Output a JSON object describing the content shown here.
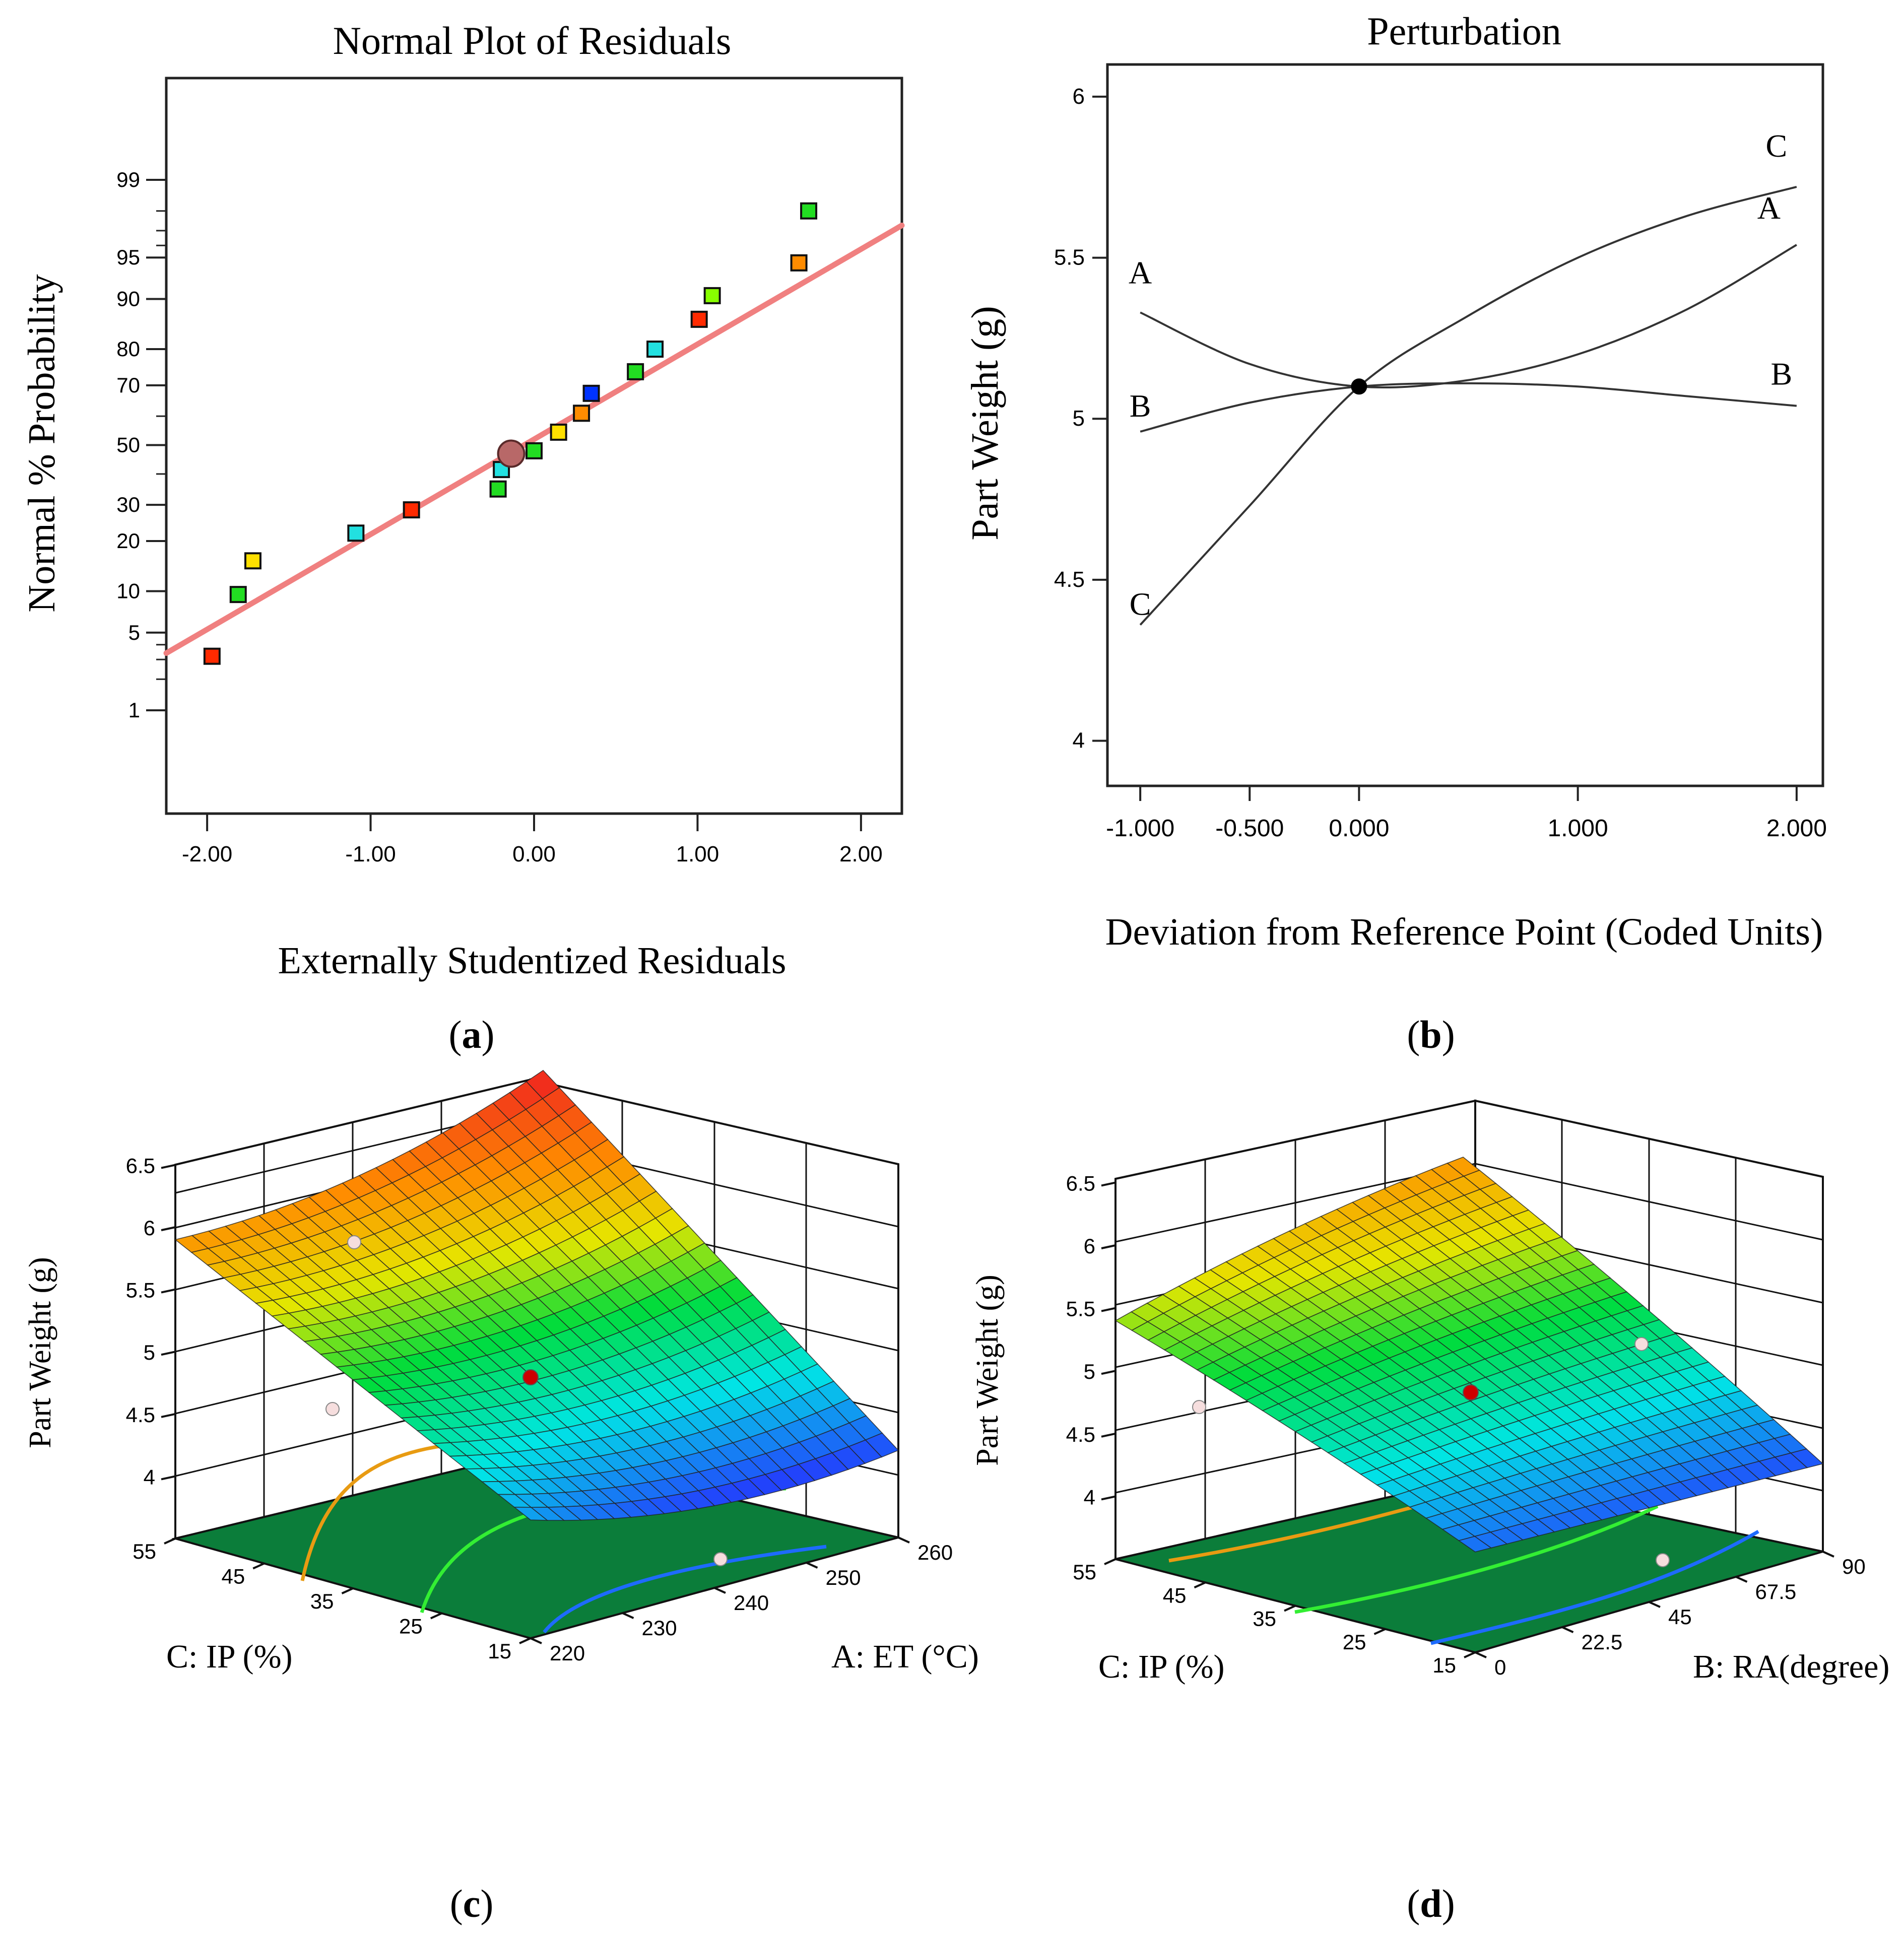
{
  "panel_labels": {
    "a": "a",
    "b": "b",
    "c": "c",
    "d": "d"
  },
  "colors": {
    "fit_line": "#f08080",
    "red": "#ff2a00",
    "orange": "#ff8c00",
    "yellow": "#ffe000",
    "lime": "#88ff00",
    "green": "#22dd22",
    "cyan": "#22e0e0",
    "teal": "#2ad8b0",
    "blue": "#0033ff",
    "floor": "#0b7d3a",
    "center_dot": "#cc0000"
  },
  "chart_data": [
    {
      "panel": "a",
      "type": "scatter",
      "title": "Normal Plot of Residuals",
      "xlabel": "Externally Studentized Residuals",
      "ylabel": "Normal % Probability",
      "xlim": [
        -2.25,
        2.25
      ],
      "x_ticks": [
        "-2.00",
        "-1.00",
        "0.00",
        "1.00",
        "2.00"
      ],
      "x_tick_values": [
        -2,
        -1,
        0,
        1,
        2
      ],
      "y_scale": "normal-probability",
      "y_ticks": [
        "1",
        "5",
        "10",
        "20",
        "30",
        "50",
        "70",
        "80",
        "90",
        "95",
        "99"
      ],
      "y_tick_values": [
        1,
        5,
        10,
        20,
        30,
        50,
        70,
        80,
        90,
        95,
        99
      ],
      "fit_line": {
        "x": [
          -2.25,
          2.25
        ],
        "y": [
          3.4,
          97.3
        ]
      },
      "points": [
        {
          "x": -1.97,
          "y": 3.2,
          "color": "red"
        },
        {
          "x": -1.81,
          "y": 9.5,
          "color": "green"
        },
        {
          "x": -1.72,
          "y": 15.5,
          "color": "yellow"
        },
        {
          "x": -1.09,
          "y": 22.0,
          "color": "cyan"
        },
        {
          "x": -0.75,
          "y": 28.5,
          "color": "red"
        },
        {
          "x": -0.22,
          "y": 35.0,
          "color": "green"
        },
        {
          "x": -0.2,
          "y": 41.5,
          "color": "cyan"
        },
        {
          "x": -0.14,
          "y": 47.0,
          "color": "highlight"
        },
        {
          "x": 0.0,
          "y": 48.0,
          "color": "green"
        },
        {
          "x": 0.15,
          "y": 54.5,
          "color": "yellow"
        },
        {
          "x": 0.29,
          "y": 61.0,
          "color": "orange"
        },
        {
          "x": 0.35,
          "y": 67.5,
          "color": "blue"
        },
        {
          "x": 0.62,
          "y": 74.0,
          "color": "green"
        },
        {
          "x": 0.74,
          "y": 80.0,
          "color": "cyan"
        },
        {
          "x": 1.01,
          "y": 86.5,
          "color": "red"
        },
        {
          "x": 1.09,
          "y": 90.5,
          "color": "lime"
        },
        {
          "x": 1.62,
          "y": 94.5,
          "color": "orange"
        },
        {
          "x": 1.68,
          "y": 98.0,
          "color": "green"
        }
      ]
    },
    {
      "panel": "b",
      "type": "line",
      "title": "Perturbation",
      "xlabel": "Deviation from Reference Point (Coded Units)",
      "ylabel": "Part Weight  (g)",
      "xlim": [
        -1.15,
        2.12
      ],
      "ylim": [
        3.86,
        6.1
      ],
      "x_ticks": [
        "-1.000",
        "-0.500",
        "0.000",
        "1.000",
        "2.000"
      ],
      "x_tick_values": [
        -1.0,
        -0.5,
        0.0,
        1.0,
        2.0
      ],
      "y_ticks": [
        "4",
        "4.5",
        "5",
        "5.5",
        "6"
      ],
      "y_tick_values": [
        4,
        4.5,
        5,
        5.5,
        6
      ],
      "reference_point": {
        "x": 0.0,
        "y": 5.1
      },
      "series": [
        {
          "name": "A",
          "x": [
            -1,
            -0.5,
            0,
            0.5,
            1,
            1.5,
            2
          ],
          "y": [
            5.33,
            5.17,
            5.1,
            5.12,
            5.2,
            5.34,
            5.54
          ],
          "start_label": "A",
          "end_label": "A"
        },
        {
          "name": "B",
          "x": [
            -1,
            -0.5,
            0,
            0.5,
            1,
            1.5,
            2
          ],
          "y": [
            4.96,
            5.05,
            5.1,
            5.11,
            5.1,
            5.07,
            5.04
          ],
          "start_label": "B",
          "end_label": "B"
        },
        {
          "name": "C",
          "x": [
            -1,
            -0.5,
            0,
            0.5,
            1,
            1.5,
            2
          ],
          "y": [
            4.36,
            4.73,
            5.1,
            5.32,
            5.5,
            5.63,
            5.72
          ],
          "start_label": "C",
          "end_label": "C"
        }
      ]
    },
    {
      "panel": "c",
      "type": "surface3d",
      "zlabel": "Part Weight  (g)",
      "z_ticks": [
        "4",
        "4.5",
        "5",
        "5.5",
        "6",
        "6.5"
      ],
      "z_tick_values": [
        4,
        4.5,
        5,
        5.5,
        6,
        6.5
      ],
      "axis1": {
        "label": "A: ET (°C)",
        "ticks": [
          "220",
          "230",
          "240",
          "250",
          "260"
        ],
        "range": [
          220,
          260
        ]
      },
      "axis2": {
        "label": "C: IP (%)",
        "ticks": [
          "15",
          "25",
          "35",
          "45",
          "55"
        ],
        "range": [
          15,
          55
        ]
      },
      "design_center": {
        "x": 240,
        "y": 35,
        "z": 5.1
      },
      "contour_levels": [
        4.5,
        5.0,
        5.5
      ],
      "corner_values": {
        "low_low": 4.45,
        "high_low": 4.2,
        "low_high": 5.9,
        "high_high": 6.45
      }
    },
    {
      "panel": "d",
      "type": "surface3d",
      "zlabel": "Part Weight  (g)",
      "z_ticks": [
        "4",
        "4.5",
        "5",
        "5.5",
        "6",
        "6.5"
      ],
      "z_tick_values": [
        4,
        4.5,
        5,
        5.5,
        6,
        6.5
      ],
      "axis1": {
        "label": "B: RA(degree)",
        "ticks": [
          "0",
          "22.5",
          "45",
          "67.5",
          "90"
        ],
        "range": [
          0,
          90
        ]
      },
      "axis2": {
        "label": "C: IP (%)",
        "ticks": [
          "15",
          "25",
          "35",
          "45",
          "55"
        ],
        "range": [
          15,
          55
        ]
      },
      "design_center": {
        "x": 45,
        "y": 35,
        "z": 5.1
      },
      "contour_levels": [
        4.5,
        5.0,
        5.5
      ],
      "corner_values": {
        "low_low": 4.3,
        "high_low": 4.2,
        "low_high": 5.4,
        "high_high": 5.9
      }
    }
  ]
}
